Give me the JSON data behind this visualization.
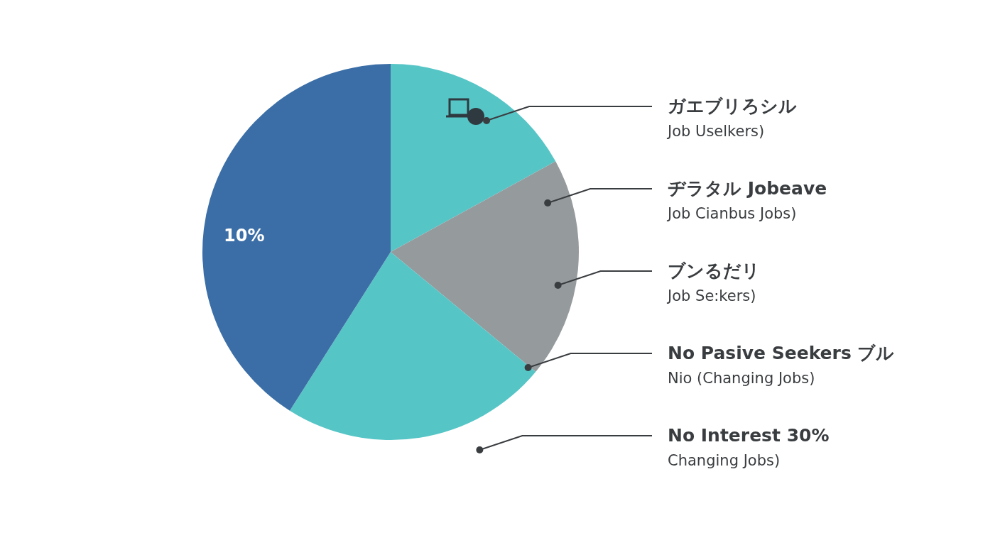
{
  "chart_data": {
    "type": "pie",
    "categories": [
      null,
      null,
      null,
      null
    ],
    "values": [
      17,
      19,
      23,
      41
    ],
    "colors": [
      "#56c5c6",
      "#959a9d",
      "#56c5c6",
      "#3b6ea6"
    ],
    "annotations": [
      "10%",
      "ガエブリろシル",
      "Job Uselkers)",
      "ヂラタル Jobeave",
      "Job Cianbus Jobs)",
      "ブンるだリ",
      "Job Se:kers)",
      "No Pasive Seekers ブル",
      "Nio (Changing Jobs)",
      "No Interest 30%",
      "Changing Jobs)"
    ]
  }
}
